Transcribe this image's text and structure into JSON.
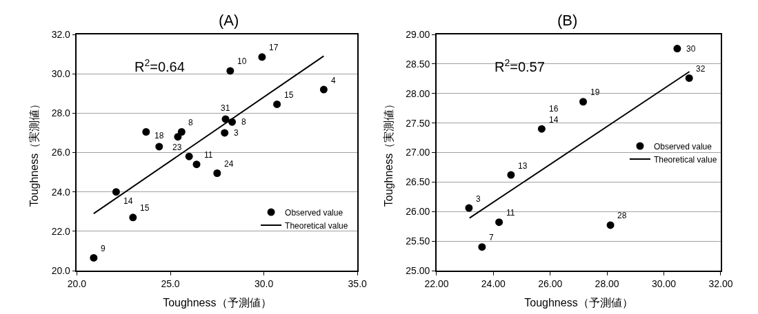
{
  "chart_data": [
    {
      "type": "scatter",
      "title": "(A)",
      "xlabel": "Toughness（予測値）",
      "ylabel": "Toughness（実測値）",
      "xlim": [
        20,
        35
      ],
      "xticks": [
        {
          "value": 20,
          "label": "20.0"
        },
        {
          "value": 25,
          "label": "25.0"
        },
        {
          "value": 30,
          "label": "30.0"
        },
        {
          "value": 35,
          "label": "35.0"
        }
      ],
      "ylim": [
        20,
        32
      ],
      "yticks": [
        {
          "value": 20,
          "label": "20.0"
        },
        {
          "value": 22,
          "label": "22.0"
        },
        {
          "value": 24,
          "label": "24.0"
        },
        {
          "value": 26,
          "label": "26.0"
        },
        {
          "value": 28,
          "label": "28.0"
        },
        {
          "value": 30,
          "label": "30.0"
        },
        {
          "value": 32,
          "label": "32.0"
        }
      ],
      "grid": "y",
      "legend": "bottom right",
      "marker": "circle",
      "series": [
        {
          "name": "Observed value",
          "type": "scatter",
          "color": "#000000",
          "x": [
            20.9,
            22.1,
            23.0,
            23.7,
            24.4,
            25.4,
            25.6,
            26.0,
            26.4,
            27.5,
            27.9,
            27.95,
            28.3,
            28.2,
            29.9,
            30.7,
            33.2
          ],
          "values": [
            20.65,
            24.0,
            22.7,
            27.05,
            26.3,
            26.8,
            27.05,
            25.8,
            25.4,
            24.95,
            27.0,
            27.7,
            27.55,
            30.15,
            30.85,
            28.45,
            29.2
          ]
        },
        {
          "name": "Theoretical value",
          "type": "line",
          "color": "#000000",
          "marker": "none",
          "line_style": "solid",
          "x": [
            20.9,
            33.2
          ],
          "values": [
            22.9,
            30.9
          ]
        }
      ],
      "annotations": [
        "R$^{2}$=0.64",
        {
          "text": "9",
          "x": 20.9,
          "y": 20.65
        },
        {
          "text": "14",
          "x": 22.1,
          "y": 24.0
        },
        {
          "text": "15",
          "x": 23.0,
          "y": 22.7
        },
        {
          "text": "18",
          "x": 24.4,
          "y": 26.3
        },
        {
          "text": "8",
          "x": 25.6,
          "y": 27.05
        },
        {
          "text": "23",
          "x": 26.0,
          "y": 25.8
        },
        {
          "text": "11",
          "x": 26.4,
          "y": 25.4
        },
        {
          "text": "24",
          "x": 27.5,
          "y": 24.95
        },
        {
          "text": "3",
          "x": 27.9,
          "y": 27.0
        },
        {
          "text": "31",
          "x": 27.95,
          "y": 27.7
        },
        {
          "text": "8",
          "x": 28.3,
          "y": 27.55
        },
        {
          "text": "10",
          "x": 28.2,
          "y": 30.15
        },
        {
          "text": "17",
          "x": 29.9,
          "y": 30.85
        },
        {
          "text": "15",
          "x": 30.7,
          "y": 28.45
        },
        {
          "text": "4",
          "x": 33.2,
          "y": 29.2
        }
      ]
    },
    {
      "type": "scatter",
      "title": "(B)",
      "xlabel": "Toughness（予測値）",
      "ylabel": "Toughness（実測値）",
      "xlim": [
        22,
        32
      ],
      "xticks": [
        {
          "value": 22,
          "label": "22.00"
        },
        {
          "value": 24,
          "label": "24.00"
        },
        {
          "value": 26,
          "label": "26.00"
        },
        {
          "value": 28,
          "label": "28.00"
        },
        {
          "value": 30,
          "label": "30.00"
        },
        {
          "value": 32,
          "label": "32.00"
        }
      ],
      "ylim": [
        25,
        29
      ],
      "yticks": [
        {
          "value": 25,
          "label": "25.00"
        },
        {
          "value": 25.5,
          "label": "25.50"
        },
        {
          "value": 26,
          "label": "26.00"
        },
        {
          "value": 26.5,
          "label": "26.50"
        },
        {
          "value": 27,
          "label": "27.00"
        },
        {
          "value": 27.5,
          "label": "27.50"
        },
        {
          "value": 28,
          "label": "28.00"
        },
        {
          "value": 28.5,
          "label": "28.50"
        },
        {
          "value": 29,
          "label": "29.00"
        }
      ],
      "grid": "y",
      "legend": "right",
      "marker": "circle",
      "series": [
        {
          "name": "Observed value",
          "type": "scatter",
          "color": "#000000",
          "x": [
            23.14,
            23.6,
            24.2,
            24.62,
            25.7,
            27.16,
            28.12,
            30.47,
            30.89
          ],
          "values": [
            26.06,
            25.4,
            25.82,
            26.62,
            27.4,
            27.86,
            25.77,
            28.76,
            28.26
          ]
        },
        {
          "name": "Theoretical value",
          "type": "line",
          "color": "#000000",
          "marker": "none",
          "line_style": "solid",
          "x": [
            23.16,
            30.9
          ],
          "values": [
            25.89,
            28.37
          ]
        }
      ],
      "annotations": [
        "R$^{2}$=0.57",
        {
          "text": "3",
          "x": 23.14,
          "y": 26.06
        },
        {
          "text": "7",
          "x": 23.6,
          "y": 25.4
        },
        {
          "text": "11",
          "x": 24.2,
          "y": 25.82
        },
        {
          "text": "13",
          "x": 24.62,
          "y": 26.62
        },
        {
          "text": "16\n14",
          "x": 25.7,
          "y": 27.4
        },
        {
          "text": "19",
          "x": 27.16,
          "y": 27.86
        },
        {
          "text": "28",
          "x": 28.12,
          "y": 25.77
        },
        {
          "text": "30",
          "x": 30.47,
          "y": 28.76
        },
        {
          "text": "32",
          "x": 30.89,
          "y": 28.26
        }
      ]
    }
  ]
}
